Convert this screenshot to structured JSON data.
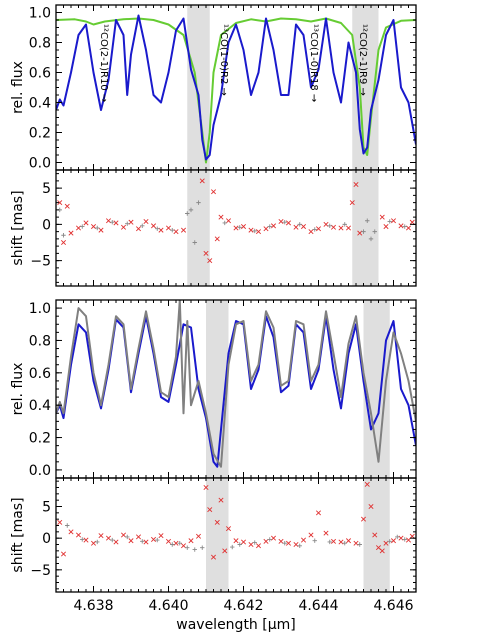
{
  "chart_data": [
    {
      "type": "line",
      "panel": "top spectrum",
      "ylabel": "rel. flux",
      "xlim": [
        4.637,
        4.6466
      ],
      "ylim": [
        -0.05,
        1.05
      ],
      "yticks": [
        0.0,
        0.2,
        0.4,
        0.6,
        0.8,
        1.0
      ],
      "ytick_labels": [
        "0.0",
        "0.2",
        "0.4",
        "0.6",
        "0.8",
        "1.0"
      ],
      "shaded_x_ranges": [
        [
          4.6405,
          4.6411
        ],
        [
          4.6449,
          4.6456
        ]
      ],
      "annotations": [
        {
          "text": "¹²CO(2-1)R10 →",
          "x": 4.6382
        },
        {
          "text": "¹³CO(1-0)R2 →",
          "x": 4.6414
        },
        {
          "text": "¹³CO(1-0)R18 →",
          "x": 4.6438
        },
        {
          "text": "¹²CO(2-1)R9 →",
          "x": 4.6451
        }
      ],
      "series": [
        {
          "color": "#66cc33",
          "x": [
            4.637,
            4.6375,
            4.6378,
            4.638,
            4.6383,
            4.6388,
            4.6392,
            4.6396,
            4.64,
            4.6404,
            4.6407,
            4.6409,
            4.641,
            4.6411,
            4.6412,
            4.6414,
            4.6418,
            4.6422,
            4.6426,
            4.643,
            4.6434,
            4.6438,
            4.6442,
            4.6446,
            4.6449,
            4.6451,
            4.6452,
            4.6453,
            4.6454,
            4.6456,
            4.6458,
            4.6462,
            4.6466
          ],
          "y": [
            0.95,
            0.955,
            0.94,
            0.92,
            0.94,
            0.955,
            0.96,
            0.95,
            0.92,
            0.85,
            0.6,
            0.2,
            0.0,
            0.2,
            0.6,
            0.85,
            0.93,
            0.955,
            0.94,
            0.96,
            0.955,
            0.94,
            0.96,
            0.93,
            0.85,
            0.5,
            0.1,
            0.05,
            0.3,
            0.75,
            0.9,
            0.945,
            0.95
          ]
        },
        {
          "color": "#1a1acc",
          "x": [
            4.637,
            4.6371,
            4.6372,
            4.6374,
            4.6376,
            4.6378,
            4.638,
            4.6382,
            4.6384,
            4.6386,
            4.6388,
            4.6389,
            4.639,
            4.6392,
            4.6394,
            4.6396,
            4.6398,
            4.64,
            4.6402,
            4.6404,
            4.6406,
            4.6408,
            4.6409,
            4.641,
            4.6411,
            4.6412,
            4.6413,
            4.6414,
            4.6416,
            4.6418,
            4.642,
            4.6422,
            4.6424,
            4.6426,
            4.6428,
            4.643,
            4.6432,
            4.6434,
            4.6436,
            4.6438,
            4.644,
            4.6442,
            4.6444,
            4.6446,
            4.6448,
            4.645,
            4.6451,
            4.6452,
            4.6453,
            4.6454,
            4.6456,
            4.6458,
            4.646,
            4.6462,
            4.6464,
            4.6466
          ],
          "y": [
            0.35,
            0.42,
            0.38,
            0.6,
            0.85,
            0.92,
            0.6,
            0.35,
            0.55,
            0.95,
            0.85,
            0.45,
            0.72,
            0.98,
            0.75,
            0.45,
            0.4,
            0.6,
            0.88,
            0.96,
            0.62,
            0.45,
            0.15,
            0.02,
            0.05,
            0.25,
            0.35,
            0.45,
            0.8,
            0.92,
            0.75,
            0.45,
            0.6,
            0.96,
            0.75,
            0.45,
            0.45,
            0.92,
            0.85,
            0.5,
            0.62,
            0.96,
            0.6,
            0.4,
            0.8,
            0.6,
            0.22,
            0.06,
            0.1,
            0.35,
            0.55,
            0.85,
            0.95,
            0.5,
            0.4,
            0.12
          ]
        }
      ]
    },
    {
      "type": "scatter",
      "panel": "top shift",
      "ylabel": "shift [mas]",
      "xlim": [
        4.637,
        4.6466
      ],
      "ylim": [
        -8.5,
        7.5
      ],
      "yticks": [
        -5,
        0,
        5
      ],
      "ytick_labels": [
        "−5",
        "0",
        "5"
      ],
      "shaded_x_ranges": [
        [
          4.6405,
          4.6411
        ],
        [
          4.6449,
          4.6456
        ]
      ],
      "series": [
        {
          "color": "#e03030",
          "marker": "x",
          "x": [
            4.6371,
            4.6372,
            4.6373,
            4.6374,
            4.6376,
            4.6378,
            4.638,
            4.6382,
            4.6384,
            4.6386,
            4.6388,
            4.639,
            4.6392,
            4.6394,
            4.6396,
            4.6398,
            4.64,
            4.6402,
            4.6404,
            4.6409,
            4.641,
            4.6411,
            4.6412,
            4.6413,
            4.6414,
            4.6416,
            4.6418,
            4.642,
            4.6422,
            4.6424,
            4.6426,
            4.6428,
            4.643,
            4.6432,
            4.6434,
            4.6436,
            4.6438,
            4.644,
            4.6442,
            4.6444,
            4.6446,
            4.6448,
            4.6449,
            4.645,
            4.6451,
            4.6457,
            4.6458,
            4.646,
            4.6462,
            4.6464,
            4.6465
          ],
          "y": [
            3.0,
            -2.5,
            2.5,
            -1.2,
            -0.5,
            0.2,
            -0.3,
            -0.8,
            0.5,
            0.2,
            -0.4,
            0.3,
            -0.6,
            0.4,
            -0.2,
            -0.8,
            -0.5,
            -1.0,
            -0.8,
            6.0,
            -4.0,
            -5.0,
            4.5,
            -2.0,
            1.0,
            0.5,
            -0.5,
            -0.3,
            -0.8,
            -1.0,
            -0.6,
            -0.2,
            0.4,
            0.2,
            -0.4,
            -0.3,
            -1.0,
            -0.6,
            0.0,
            -0.4,
            -0.5,
            -0.5,
            3.0,
            5.5,
            -1.2,
            1.0,
            -0.3,
            0.5,
            -0.2,
            -0.5,
            0.3
          ]
        },
        {
          "color": "#888888",
          "marker": "+",
          "x": [
            4.6371,
            4.6372,
            4.6377,
            4.6381,
            4.6385,
            4.6389,
            4.6393,
            4.6397,
            4.6401,
            4.6405,
            4.6406,
            4.6407,
            4.6408,
            4.6415,
            4.6419,
            4.6423,
            4.6427,
            4.6431,
            4.6435,
            4.6439,
            4.6443,
            4.6447,
            4.6452,
            4.6453,
            4.6454,
            4.6455,
            4.6459,
            4.6463
          ],
          "y": [
            2.0,
            -1.5,
            -0.3,
            -0.5,
            0.3,
            0.1,
            -0.2,
            -0.6,
            -0.8,
            1.5,
            2.0,
            -2.5,
            3.0,
            0.2,
            -0.4,
            -0.9,
            -0.3,
            0.3,
            0.0,
            -0.7,
            -0.2,
            0.0,
            -1.0,
            0.5,
            -2.0,
            -1.0,
            0.4,
            -0.3
          ]
        }
      ]
    },
    {
      "type": "line",
      "panel": "bottom spectrum",
      "ylabel": "rel. flux",
      "xlim": [
        4.637,
        4.6466
      ],
      "ylim": [
        -0.05,
        1.05
      ],
      "yticks": [
        0.0,
        0.2,
        0.4,
        0.6,
        0.8,
        1.0
      ],
      "ytick_labels": [
        "0.0",
        "0.2",
        "0.4",
        "0.6",
        "0.8",
        "1.0"
      ],
      "shaded_x_ranges": [
        [
          4.641,
          4.6416
        ],
        [
          4.6452,
          4.6459
        ]
      ],
      "series": [
        {
          "color": "#1a1acc",
          "x": [
            4.637,
            4.6371,
            4.6372,
            4.6374,
            4.6376,
            4.6378,
            4.638,
            4.6382,
            4.6384,
            4.6386,
            4.6388,
            4.639,
            4.6392,
            4.6394,
            4.6396,
            4.6398,
            4.64,
            4.6402,
            4.6404,
            4.6406,
            4.6408,
            4.641,
            4.6412,
            4.6413,
            4.6414,
            4.6416,
            4.6418,
            4.642,
            4.6422,
            4.6424,
            4.6426,
            4.6428,
            4.643,
            4.6432,
            4.6434,
            4.6436,
            4.6438,
            4.644,
            4.6442,
            4.6444,
            4.6446,
            4.6448,
            4.645,
            4.6452,
            4.6454,
            4.6456,
            4.6458,
            4.646,
            4.6462,
            4.6464,
            4.6466
          ],
          "y": [
            0.35,
            0.4,
            0.32,
            0.65,
            0.9,
            0.85,
            0.55,
            0.38,
            0.62,
            0.93,
            0.88,
            0.48,
            0.72,
            0.95,
            0.72,
            0.45,
            0.42,
            0.65,
            0.9,
            0.88,
            0.5,
            0.32,
            0.05,
            0.02,
            0.25,
            0.72,
            0.92,
            0.9,
            0.5,
            0.62,
            0.95,
            0.82,
            0.48,
            0.52,
            0.9,
            0.85,
            0.5,
            0.62,
            0.95,
            0.62,
            0.38,
            0.72,
            0.9,
            0.55,
            0.25,
            0.35,
            0.8,
            0.92,
            0.5,
            0.4,
            0.15
          ]
        },
        {
          "color": "#808080",
          "x": [
            4.637,
            4.6371,
            4.6372,
            4.6374,
            4.6376,
            4.6378,
            4.638,
            4.6382,
            4.6384,
            4.6386,
            4.6388,
            4.639,
            4.6392,
            4.6394,
            4.6396,
            4.6398,
            4.64,
            4.6402,
            4.6403,
            4.6404,
            4.6405,
            4.6406,
            4.6408,
            4.641,
            4.6412,
            4.6414,
            4.6416,
            4.6418,
            4.642,
            4.6422,
            4.6424,
            4.6426,
            4.6428,
            4.643,
            4.6432,
            4.6434,
            4.6436,
            4.6438,
            4.644,
            4.6442,
            4.6444,
            4.6446,
            4.6448,
            4.645,
            4.6452,
            4.6454,
            4.6456,
            4.6458,
            4.646,
            4.6462,
            4.6464,
            4.6466
          ],
          "y": [
            0.35,
            0.42,
            0.35,
            0.7,
            1.0,
            0.95,
            0.6,
            0.4,
            0.65,
            0.95,
            0.9,
            0.5,
            0.75,
            0.98,
            0.75,
            0.48,
            0.45,
            0.7,
            1.05,
            0.35,
            0.92,
            0.4,
            0.55,
            0.35,
            0.1,
            0.02,
            0.65,
            0.9,
            0.92,
            0.55,
            0.65,
            0.98,
            0.88,
            0.52,
            0.55,
            0.92,
            0.9,
            0.55,
            0.65,
            0.98,
            0.72,
            0.45,
            0.78,
            0.95,
            0.6,
            0.35,
            0.05,
            0.55,
            0.85,
            0.72,
            0.55,
            0.3
          ]
        }
      ]
    },
    {
      "type": "scatter",
      "panel": "bottom shift",
      "ylabel": "shift [mas]",
      "xlabel": "wavelength [μm]",
      "xlim": [
        4.637,
        4.6466
      ],
      "xticks": [
        4.638,
        4.64,
        4.642,
        4.644,
        4.646
      ],
      "xtick_labels": [
        "4.638",
        "4.640",
        "4.642",
        "4.644",
        "4.646"
      ],
      "ylim": [
        -8.5,
        9.5
      ],
      "yticks": [
        -5,
        0,
        5
      ],
      "ytick_labels": [
        "−5",
        "0",
        "5"
      ],
      "shaded_x_ranges": [
        [
          4.641,
          4.6416
        ],
        [
          4.6452,
          4.6459
        ]
      ],
      "series": [
        {
          "color": "#e03030",
          "marker": "x",
          "x": [
            4.6371,
            4.6372,
            4.6374,
            4.6376,
            4.6378,
            4.638,
            4.6382,
            4.6384,
            4.6386,
            4.6388,
            4.639,
            4.6392,
            4.6394,
            4.6396,
            4.6398,
            4.64,
            4.6402,
            4.6404,
            4.6406,
            4.6408,
            4.641,
            4.6411,
            4.6412,
            4.6413,
            4.6414,
            4.6415,
            4.6416,
            4.6418,
            4.642,
            4.6422,
            4.6424,
            4.6426,
            4.6428,
            4.643,
            4.6432,
            4.6434,
            4.6436,
            4.6438,
            4.644,
            4.6442,
            4.6444,
            4.6446,
            4.6448,
            4.645,
            4.6452,
            4.6453,
            4.6454,
            4.6455,
            4.6456,
            4.6457,
            4.6458,
            4.646,
            4.6462,
            4.6464,
            4.6465
          ],
          "y": [
            2.5,
            -2.5,
            1.0,
            0.5,
            -0.3,
            -0.8,
            0.4,
            0.0,
            -0.6,
            0.5,
            -0.4,
            0.2,
            -0.6,
            -0.2,
            0.4,
            -0.5,
            -0.8,
            -1.2,
            -0.4,
            0.3,
            8.0,
            4.5,
            -3.0,
            2.5,
            6.0,
            -2.0,
            1.5,
            -0.4,
            -0.6,
            -1.0,
            -1.2,
            -0.5,
            0.0,
            -0.5,
            -0.8,
            -1.0,
            -0.3,
            0.5,
            4.0,
            0.8,
            -0.5,
            -0.6,
            -0.4,
            -0.8,
            3.0,
            8.5,
            5.0,
            0.5,
            -1.5,
            -2.0,
            -0.8,
            -0.4,
            0.0,
            -0.3,
            0.3
          ]
        },
        {
          "color": "#888888",
          "marker": "+",
          "x": [
            4.6373,
            4.6377,
            4.6381,
            4.6385,
            4.6389,
            4.6393,
            4.6397,
            4.6401,
            4.6403,
            4.6405,
            4.6407,
            4.6409,
            4.6417,
            4.6419,
            4.6423,
            4.6427,
            4.6431,
            4.6435,
            4.6439,
            4.6443,
            4.6447,
            4.6451,
            4.6459,
            4.6461,
            4.6463
          ],
          "y": [
            2.0,
            -0.2,
            -0.6,
            -0.3,
            0.2,
            -0.5,
            -0.3,
            -1.0,
            -0.8,
            -1.5,
            -1.8,
            -1.5,
            -1.4,
            -1.0,
            -0.7,
            -0.2,
            -0.8,
            -1.2,
            -0.4,
            -0.6,
            -0.8,
            -1.0,
            -0.5,
            0.2,
            -0.2
          ]
        }
      ]
    }
  ]
}
